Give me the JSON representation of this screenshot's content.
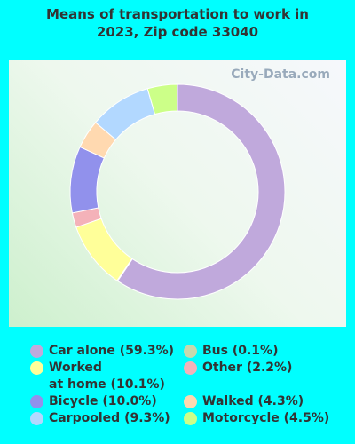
{
  "chart_data": {
    "type": "donut",
    "title": "Means of transportation to work in 2023, Zip code 33040",
    "watermark": "City-Data.com",
    "values": [
      59.3,
      0.1,
      10.1,
      2.2,
      10.0,
      4.3,
      9.3,
      4.5
    ],
    "value_labels": [
      "Car alone (59.3%)",
      "Bus (0.1%)",
      "Worked\nat home (10.1%)",
      "Other (2.2%)",
      "Bicycle (10.0%)",
      "Walked (4.3%)",
      "Carpooled (9.3%)",
      "Motorcycle (4.5%)"
    ],
    "colors": [
      "#c0a9dc",
      "#c6d9ae",
      "#ffff99",
      "#f4b2b9",
      "#9191ec",
      "#ffd9b0",
      "#b2d8ff",
      "#ccff88"
    ]
  }
}
